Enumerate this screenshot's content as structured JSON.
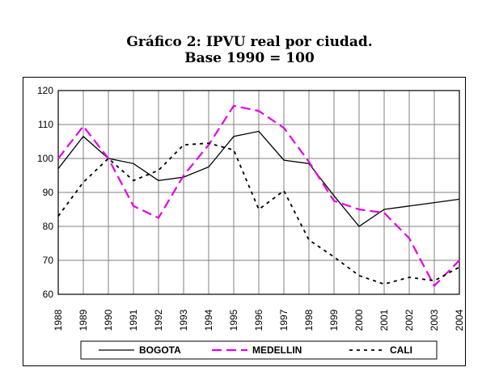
{
  "chart_data": {
    "type": "line",
    "title": "Gráfico 2: IPVU real por ciudad.",
    "subtitle": "Base 1990 = 100",
    "x": [
      "1988",
      "1989",
      "1990",
      "1991",
      "1992",
      "1993",
      "1994",
      "1995",
      "1996",
      "1997",
      "1998",
      "1999",
      "2000",
      "2001",
      "2002",
      "2003",
      "2004"
    ],
    "ylim": [
      60,
      120
    ],
    "yticks": [
      "60",
      "70",
      "80",
      "90",
      "100",
      "110",
      "120"
    ],
    "grid": true,
    "legend_position": "bottom",
    "series": [
      {
        "name": "BOGOTA",
        "color": "#000000",
        "style": "solid",
        "values": [
          97,
          106.5,
          100,
          98.5,
          93.5,
          94.5,
          97.5,
          106.5,
          108,
          99.5,
          98.5,
          89,
          80,
          85,
          86,
          87,
          88
        ]
      },
      {
        "name": "MEDELLIN",
        "color": "#e600e6",
        "style": "dashed",
        "values": [
          100,
          109.5,
          100,
          86,
          82.5,
          95,
          104,
          115.5,
          114,
          109,
          99,
          87.5,
          85,
          84,
          76.5,
          62.5,
          70
        ]
      },
      {
        "name": "CALI",
        "color": "#000000",
        "style": "dotted",
        "values": [
          83,
          93,
          100,
          93.5,
          96.5,
          104,
          104.5,
          102.5,
          85,
          90.5,
          76,
          71,
          65.5,
          63,
          65,
          64,
          68
        ]
      }
    ]
  }
}
